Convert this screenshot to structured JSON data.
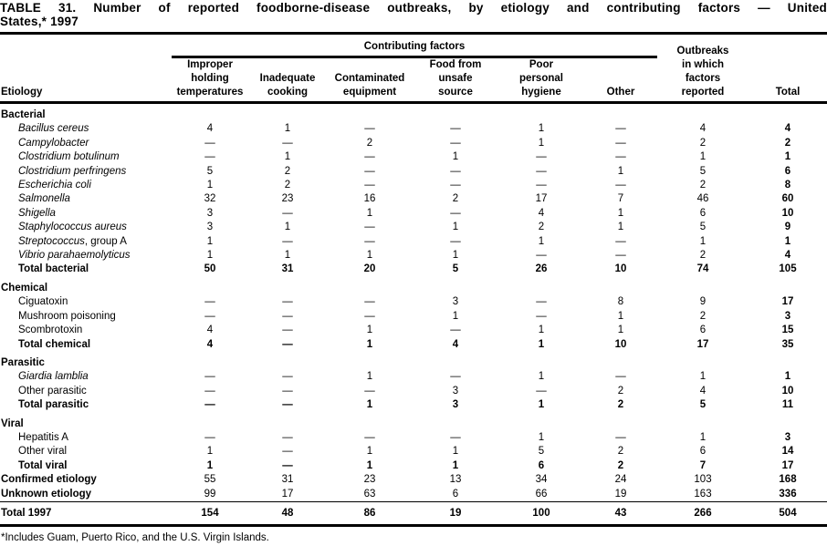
{
  "colors": {
    "text": "#000000",
    "background": "#ffffff",
    "rule": "#000000"
  },
  "title": {
    "line1": "TABLE 31. Number of reported foodborne-disease outbreaks, by etiology and contributing factors — United",
    "line2": "States,* 1997"
  },
  "table": {
    "header": {
      "etiology": "Etiology",
      "contributing_factors": "Contributing factors",
      "columns": [
        "Improper\nholding\ntemperatures",
        "Inadequate\ncooking",
        "Contaminated\nequipment",
        "Food from\nunsafe\nsource",
        "Poor\npersonal\nhygiene",
        "Other",
        "Outbreaks\nin which\nfactors\nreported",
        "Total"
      ]
    },
    "rows": [
      {
        "type": "section",
        "label": "Bacterial"
      },
      {
        "type": "item",
        "italic": true,
        "label": "Bacillus cereus",
        "values": [
          "4",
          "1",
          "—",
          "—",
          "1",
          "—",
          "4",
          "4"
        ]
      },
      {
        "type": "item",
        "italic": true,
        "label": "Campylobacter",
        "values": [
          "—",
          "—",
          "2",
          "—",
          "1",
          "—",
          "2",
          "2"
        ]
      },
      {
        "type": "item",
        "italic": true,
        "label": "Clostridium botulinum",
        "values": [
          "—",
          "1",
          "—",
          "1",
          "—",
          "—",
          "1",
          "1"
        ]
      },
      {
        "type": "item",
        "italic": true,
        "label": "Clostridium perfringens",
        "values": [
          "5",
          "2",
          "—",
          "—",
          "—",
          "1",
          "5",
          "6"
        ]
      },
      {
        "type": "item",
        "italic": true,
        "label": "Escherichia coli",
        "values": [
          "1",
          "2",
          "—",
          "—",
          "—",
          "—",
          "2",
          "8"
        ]
      },
      {
        "type": "item",
        "italic": true,
        "label": "Salmonella",
        "values": [
          "32",
          "23",
          "16",
          "2",
          "17",
          "7",
          "46",
          "60"
        ]
      },
      {
        "type": "item",
        "italic": true,
        "label": "Shigella",
        "values": [
          "3",
          "—",
          "1",
          "—",
          "4",
          "1",
          "6",
          "10"
        ]
      },
      {
        "type": "item",
        "italic": true,
        "label": "Staphylococcus aureus",
        "values": [
          "3",
          "1",
          "—",
          "1",
          "2",
          "1",
          "5",
          "9"
        ]
      },
      {
        "type": "item",
        "italic": true,
        "label": "Streptococcus",
        "suffix": ", group A",
        "values": [
          "1",
          "—",
          "—",
          "—",
          "1",
          "—",
          "1",
          "1"
        ]
      },
      {
        "type": "item",
        "italic": true,
        "label": "Vibrio parahaemolyticus",
        "values": [
          "1",
          "1",
          "1",
          "1",
          "—",
          "—",
          "2",
          "4"
        ]
      },
      {
        "type": "subtotal",
        "label": "Total bacterial",
        "values": [
          "50",
          "31",
          "20",
          "5",
          "26",
          "10",
          "74",
          "105"
        ]
      },
      {
        "type": "section",
        "label": "Chemical"
      },
      {
        "type": "item",
        "italic": false,
        "label": "Ciguatoxin",
        "values": [
          "—",
          "—",
          "—",
          "3",
          "—",
          "8",
          "9",
          "17"
        ]
      },
      {
        "type": "item",
        "italic": false,
        "label": "Mushroom poisoning",
        "values": [
          "—",
          "—",
          "—",
          "1",
          "—",
          "1",
          "2",
          "3"
        ]
      },
      {
        "type": "item",
        "italic": false,
        "label": "Scombrotoxin",
        "values": [
          "4",
          "—",
          "1",
          "—",
          "1",
          "1",
          "6",
          "15"
        ]
      },
      {
        "type": "subtotal",
        "label": "Total chemical",
        "values": [
          "4",
          "—",
          "1",
          "4",
          "1",
          "10",
          "17",
          "35"
        ]
      },
      {
        "type": "section",
        "label": "Parasitic"
      },
      {
        "type": "item",
        "italic": true,
        "label": "Giardia lamblia",
        "values": [
          "—",
          "—",
          "1",
          "—",
          "1",
          "—",
          "1",
          "1"
        ]
      },
      {
        "type": "item",
        "italic": false,
        "label": "Other parasitic",
        "values": [
          "—",
          "—",
          "—",
          "3",
          "—",
          "2",
          "4",
          "10"
        ]
      },
      {
        "type": "subtotal",
        "label": "Total parasitic",
        "values": [
          "—",
          "—",
          "1",
          "3",
          "1",
          "2",
          "5",
          "11"
        ]
      },
      {
        "type": "section",
        "label": "Viral"
      },
      {
        "type": "item",
        "italic": false,
        "label": "Hepatitis A",
        "values": [
          "—",
          "—",
          "—",
          "—",
          "1",
          "—",
          "1",
          "3"
        ]
      },
      {
        "type": "item",
        "italic": false,
        "label": "Other viral",
        "values": [
          "1",
          "—",
          "1",
          "1",
          "5",
          "2",
          "6",
          "14"
        ]
      },
      {
        "type": "subtotal",
        "label": "Total viral",
        "values": [
          "1",
          "—",
          "1",
          "1",
          "6",
          "2",
          "7",
          "17"
        ]
      },
      {
        "type": "summary",
        "label": "Confirmed etiology",
        "values": [
          "55",
          "31",
          "23",
          "13",
          "34",
          "24",
          "103",
          "168"
        ]
      },
      {
        "type": "summary",
        "label": "Unknown etiology",
        "values": [
          "99",
          "17",
          "63",
          "6",
          "66",
          "19",
          "163",
          "336"
        ]
      },
      {
        "type": "grandtotal",
        "label": "Total 1997",
        "values": [
          "154",
          "48",
          "86",
          "19",
          "100",
          "43",
          "266",
          "504"
        ]
      }
    ]
  },
  "footnote": "*Includes Guam, Puerto Rico, and the U.S. Virgin Islands."
}
